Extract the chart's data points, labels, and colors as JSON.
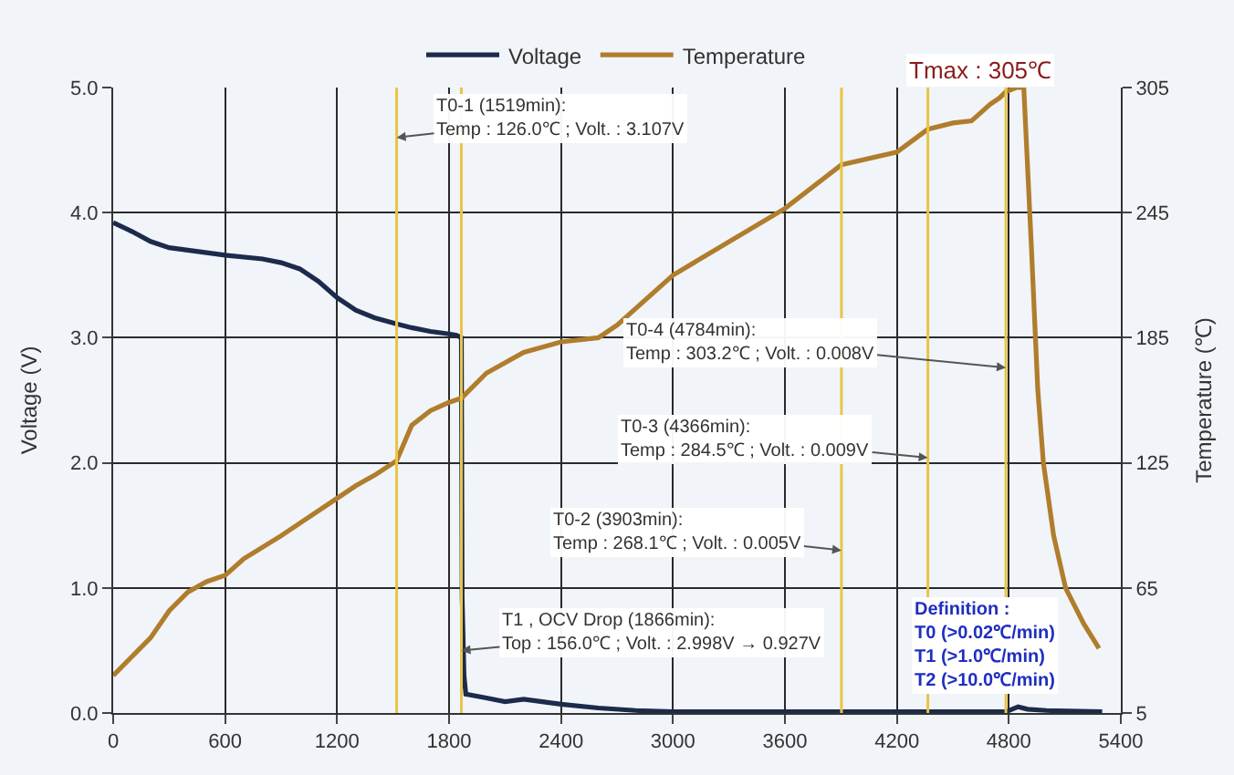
{
  "chart_data": {
    "type": "line",
    "xlabel": null,
    "ylabel": "Voltage (V)",
    "y2label": "Temperature (℃)",
    "xlim": [
      0,
      5400
    ],
    "xticks": [
      0,
      600,
      1200,
      1800,
      2400,
      3000,
      3600,
      4200,
      4800,
      5400
    ],
    "ylim": [
      0,
      5
    ],
    "yticks": [
      {
        "value": 0,
        "label": "0.0"
      },
      {
        "value": 1,
        "label": "1.0"
      },
      {
        "value": 2,
        "label": "2.0"
      },
      {
        "value": 3,
        "label": "3.0"
      },
      {
        "value": 4,
        "label": "4.0"
      },
      {
        "value": 5,
        "label": "5.0"
      }
    ],
    "y2lim": [
      5,
      305
    ],
    "y2ticks": [
      5,
      65,
      125,
      185,
      245,
      305
    ],
    "grid": true,
    "legend": "top",
    "marker": "none",
    "line_style": "solid",
    "series": [
      {
        "name": "Voltage",
        "color": "#1c2b4b",
        "x": [
          0,
          100,
          200,
          300,
          400,
          600,
          800,
          900,
          1000,
          1100,
          1200,
          1300,
          1400,
          1519,
          1600,
          1700,
          1800,
          1840,
          1866,
          1870,
          1880,
          1890,
          2000,
          2100,
          2200,
          2300,
          2400,
          2600,
          2800,
          3000,
          3600,
          4200,
          4700,
          4784,
          4850,
          4900,
          5000,
          5300
        ],
        "values": [
          3.92,
          3.85,
          3.77,
          3.72,
          3.7,
          3.66,
          3.63,
          3.6,
          3.55,
          3.45,
          3.32,
          3.22,
          3.16,
          3.11,
          3.08,
          3.05,
          3.03,
          3.02,
          3.0,
          0.93,
          0.3,
          0.15,
          0.12,
          0.09,
          0.11,
          0.09,
          0.07,
          0.04,
          0.02,
          0.01,
          0.01,
          0.01,
          0.01,
          0.01,
          0.05,
          0.03,
          0.02,
          0.01
        ]
      },
      {
        "name": "Temperature",
        "color": "#b07d2c",
        "axis": "y2",
        "x": [
          0,
          200,
          300,
          400,
          500,
          600,
          700,
          900,
          1000,
          1200,
          1300,
          1400,
          1519,
          1600,
          1700,
          1800,
          1866,
          2000,
          2200,
          2400,
          2600,
          2700,
          3000,
          3600,
          3903,
          4200,
          4366,
          4500,
          4600,
          4700,
          4750,
          4784,
          4840,
          4880,
          4920,
          4955,
          4985,
          5040,
          5104,
          5200,
          5283
        ],
        "values": [
          23,
          41,
          54,
          63,
          68,
          71,
          79,
          90,
          96,
          108,
          114,
          119,
          126,
          143,
          150,
          154,
          156,
          168,
          178,
          183,
          185,
          191,
          215,
          247,
          268,
          274,
          285,
          288,
          289,
          297,
          300,
          303,
          305,
          305,
          230,
          160,
          125,
          90,
          65,
          48,
          36
        ]
      }
    ],
    "ref_lines": [
      {
        "axis": "x",
        "value": 1519,
        "color": "#e8c547"
      },
      {
        "axis": "x",
        "value": 1866,
        "color": "#e8c547"
      },
      {
        "axis": "x",
        "value": 3903,
        "color": "#e8c547"
      },
      {
        "axis": "x",
        "value": 4366,
        "color": "#e8c547"
      },
      {
        "axis": "x",
        "value": 4784,
        "color": "#e8c547"
      }
    ],
    "annotations": [
      {
        "text": "T0-1 (1519min):\nTemp : 126.0℃ ; Volt. : 3.107V",
        "x": 1519,
        "y": 4.6
      },
      {
        "text": "T1 , OCV Drop (1866min):\nTop : 156.0℃ ; Volt. : 2.998V → 0.927V",
        "x": 1866,
        "y": 0.5
      },
      {
        "text": "T0-2 (3903min):\nTemp : 268.1℃ ; Volt. : 0.005V",
        "x": 3903,
        "y": 1.3
      },
      {
        "text": "T0-3 (4366min):\nTemp : 284.5℃ ; Volt. : 0.009V",
        "x": 4366,
        "y": 2.04
      },
      {
        "text": "T0-4 (4784min):\nTemp : 303.2℃ ; Volt. : 0.008V",
        "x": 4784,
        "y": 2.76
      },
      "Tmax : 305℃",
      "Definition :\nT0 (>0.02℃/min)\nT1 (>1.0℃/min)\nT2 (>10.0℃/min)"
    ]
  }
}
